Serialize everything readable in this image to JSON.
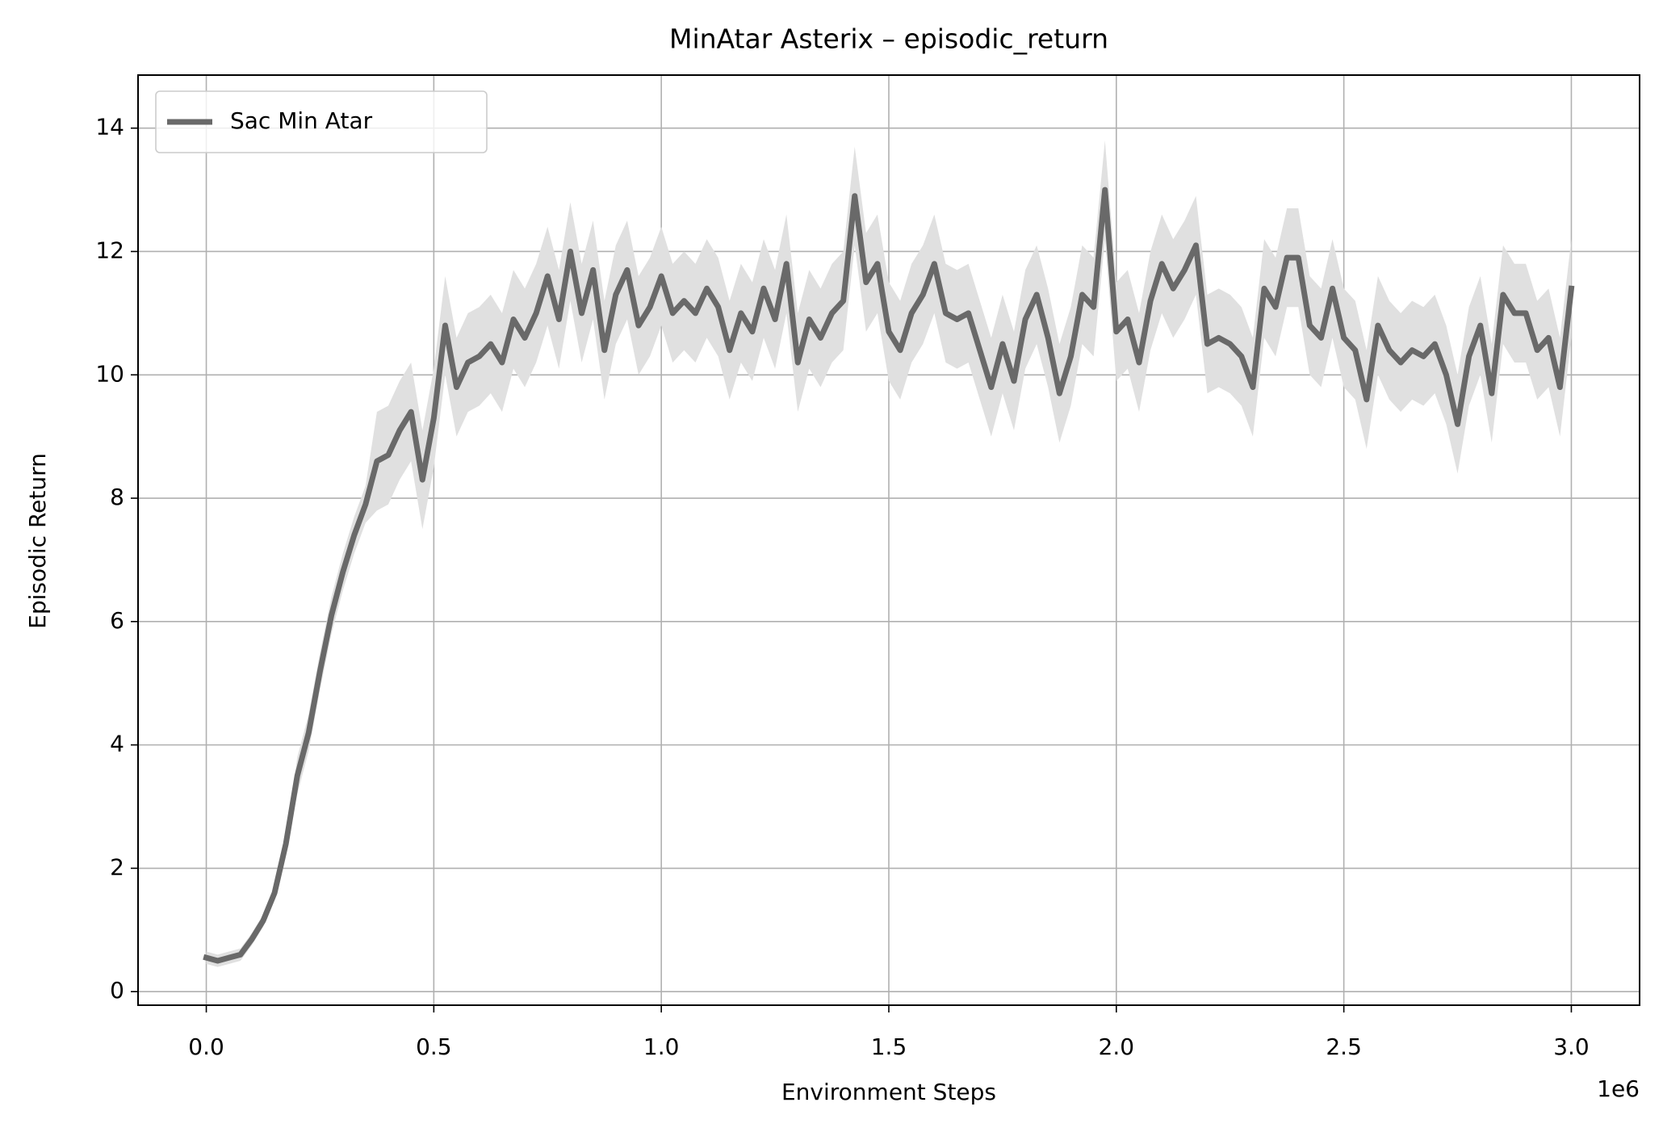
{
  "chart_data": {
    "type": "line",
    "title": "MinAtar Asterix – episodic_return",
    "x_label": "Environment Steps",
    "y_label": "Episodic Return",
    "x_offset_label": "1e6",
    "xlim": [
      -150000,
      3150000
    ],
    "ylim": [
      -0.22,
      14.86
    ],
    "xticks": [
      {
        "value": 0,
        "label": "0.0"
      },
      {
        "value": 500000,
        "label": "0.5"
      },
      {
        "value": 1000000,
        "label": "1.0"
      },
      {
        "value": 1500000,
        "label": "1.5"
      },
      {
        "value": 2000000,
        "label": "2.0"
      },
      {
        "value": 2500000,
        "label": "2.5"
      },
      {
        "value": 3000000,
        "label": "3.0"
      }
    ],
    "yticks": [
      0,
      2,
      4,
      6,
      8,
      10,
      12,
      14
    ],
    "grid": true,
    "legend": "upper left",
    "x": [
      0,
      25000,
      50000,
      75000,
      100000,
      125000,
      150000,
      175000,
      200000,
      225000,
      250000,
      275000,
      300000,
      325000,
      350000,
      375000,
      400000,
      425000,
      450000,
      475000,
      500000,
      525000,
      550000,
      575000,
      600000,
      625000,
      650000,
      675000,
      700000,
      725000,
      750000,
      775000,
      800000,
      825000,
      850000,
      875000,
      900000,
      925000,
      950000,
      975000,
      1000000,
      1025000,
      1050000,
      1075000,
      1100000,
      1125000,
      1150000,
      1175000,
      1200000,
      1225000,
      1250000,
      1275000,
      1300000,
      1325000,
      1350000,
      1375000,
      1400000,
      1425000,
      1450000,
      1475000,
      1500000,
      1525000,
      1550000,
      1575000,
      1600000,
      1625000,
      1650000,
      1675000,
      1700000,
      1725000,
      1750000,
      1775000,
      1800000,
      1825000,
      1850000,
      1875000,
      1900000,
      1925000,
      1950000,
      1975000,
      2000000,
      2025000,
      2050000,
      2075000,
      2100000,
      2125000,
      2150000,
      2175000,
      2200000,
      2225000,
      2250000,
      2275000,
      2300000,
      2325000,
      2350000,
      2375000,
      2400000,
      2425000,
      2450000,
      2475000,
      2500000,
      2525000,
      2550000,
      2575000,
      2600000,
      2625000,
      2650000,
      2675000,
      2700000,
      2725000,
      2750000,
      2775000,
      2800000,
      2825000,
      2850000,
      2875000,
      2900000,
      2925000,
      2950000,
      2975000,
      3000000
    ],
    "series": [
      {
        "name": "Sac Min Atar",
        "color": "#696969",
        "band_color": "#e0e0e0",
        "values": [
          0.55,
          0.5,
          0.55,
          0.6,
          0.85,
          1.15,
          1.6,
          2.4,
          3.5,
          4.2,
          5.2,
          6.1,
          6.8,
          7.4,
          7.9,
          8.6,
          8.7,
          9.1,
          9.4,
          8.3,
          9.3,
          10.8,
          9.8,
          10.2,
          10.3,
          10.5,
          10.2,
          10.9,
          10.6,
          11.0,
          11.6,
          10.9,
          12.0,
          11.0,
          11.7,
          10.4,
          11.3,
          11.7,
          10.8,
          11.1,
          11.6,
          11.0,
          11.2,
          11.0,
          11.4,
          11.1,
          10.4,
          11.0,
          10.7,
          11.4,
          10.9,
          11.8,
          10.2,
          10.9,
          10.6,
          11.0,
          11.2,
          12.9,
          11.5,
          11.8,
          10.7,
          10.4,
          11.0,
          11.3,
          11.8,
          11.0,
          10.9,
          11.0,
          10.4,
          9.8,
          10.5,
          9.9,
          10.9,
          11.3,
          10.6,
          9.7,
          10.3,
          11.3,
          11.1,
          13.0,
          10.7,
          10.9,
          10.2,
          11.2,
          11.8,
          11.4,
          11.7,
          12.1,
          10.5,
          10.6,
          10.5,
          10.3,
          9.8,
          11.4,
          11.1,
          11.9,
          11.9,
          10.8,
          10.6,
          11.4,
          10.6,
          10.4,
          9.6,
          10.8,
          10.4,
          10.2,
          10.4,
          10.3,
          10.5,
          10.0,
          9.2,
          10.3,
          10.8,
          9.7,
          11.3,
          11.0,
          11.0,
          10.4,
          10.6,
          9.8,
          11.4
        ],
        "lower": [
          0.45,
          0.4,
          0.45,
          0.5,
          0.75,
          1.05,
          1.5,
          2.3,
          3.2,
          3.9,
          4.9,
          5.8,
          6.5,
          7.1,
          7.6,
          7.8,
          7.9,
          8.3,
          8.6,
          7.5,
          8.5,
          10.0,
          9.0,
          9.4,
          9.5,
          9.7,
          9.4,
          10.1,
          9.8,
          10.2,
          10.8,
          10.1,
          11.2,
          10.2,
          10.9,
          9.6,
          10.5,
          10.9,
          10.0,
          10.3,
          10.8,
          10.2,
          10.4,
          10.2,
          10.6,
          10.3,
          9.6,
          10.2,
          9.9,
          10.6,
          10.1,
          11.0,
          9.4,
          10.1,
          9.8,
          10.2,
          10.4,
          12.1,
          10.7,
          11.0,
          9.9,
          9.6,
          10.2,
          10.5,
          11.0,
          10.2,
          10.1,
          10.2,
          9.6,
          9.0,
          9.7,
          9.1,
          10.1,
          10.5,
          9.8,
          8.9,
          9.5,
          10.5,
          10.3,
          12.2,
          9.9,
          10.1,
          9.4,
          10.4,
          11.0,
          10.6,
          10.9,
          11.3,
          9.7,
          9.8,
          9.7,
          9.5,
          9.0,
          10.6,
          10.3,
          11.1,
          11.1,
          10.0,
          9.8,
          10.6,
          9.8,
          9.6,
          8.8,
          10.0,
          9.6,
          9.4,
          9.6,
          9.5,
          9.7,
          9.2,
          8.4,
          9.5,
          10.0,
          8.9,
          10.5,
          10.2,
          10.2,
          9.6,
          9.8,
          9.0,
          10.6
        ],
        "upper": [
          0.65,
          0.6,
          0.65,
          0.7,
          0.95,
          1.25,
          1.7,
          2.5,
          3.8,
          4.5,
          5.5,
          6.4,
          7.1,
          7.7,
          8.2,
          9.4,
          9.5,
          9.9,
          10.2,
          9.1,
          10.1,
          11.6,
          10.6,
          11.0,
          11.1,
          11.3,
          11.0,
          11.7,
          11.4,
          11.8,
          12.4,
          11.7,
          12.8,
          11.8,
          12.5,
          11.2,
          12.1,
          12.5,
          11.6,
          11.9,
          12.4,
          11.8,
          12.0,
          11.8,
          12.2,
          11.9,
          11.2,
          11.8,
          11.5,
          12.2,
          11.7,
          12.6,
          11.0,
          11.7,
          11.4,
          11.8,
          12.0,
          13.7,
          12.3,
          12.6,
          11.5,
          11.2,
          11.8,
          12.1,
          12.6,
          11.8,
          11.7,
          11.8,
          11.2,
          10.6,
          11.3,
          10.7,
          11.7,
          12.1,
          11.4,
          10.5,
          11.1,
          12.1,
          11.9,
          13.8,
          11.5,
          11.7,
          11.0,
          12.0,
          12.6,
          12.2,
          12.5,
          12.9,
          11.3,
          11.4,
          11.3,
          11.1,
          10.6,
          12.2,
          11.9,
          12.7,
          12.7,
          11.6,
          11.4,
          12.2,
          11.4,
          11.2,
          10.4,
          11.6,
          11.2,
          11.0,
          11.2,
          11.1,
          11.3,
          10.8,
          10.0,
          11.1,
          11.6,
          10.5,
          12.1,
          11.8,
          11.8,
          11.2,
          11.4,
          10.6,
          12.2
        ]
      }
    ]
  }
}
